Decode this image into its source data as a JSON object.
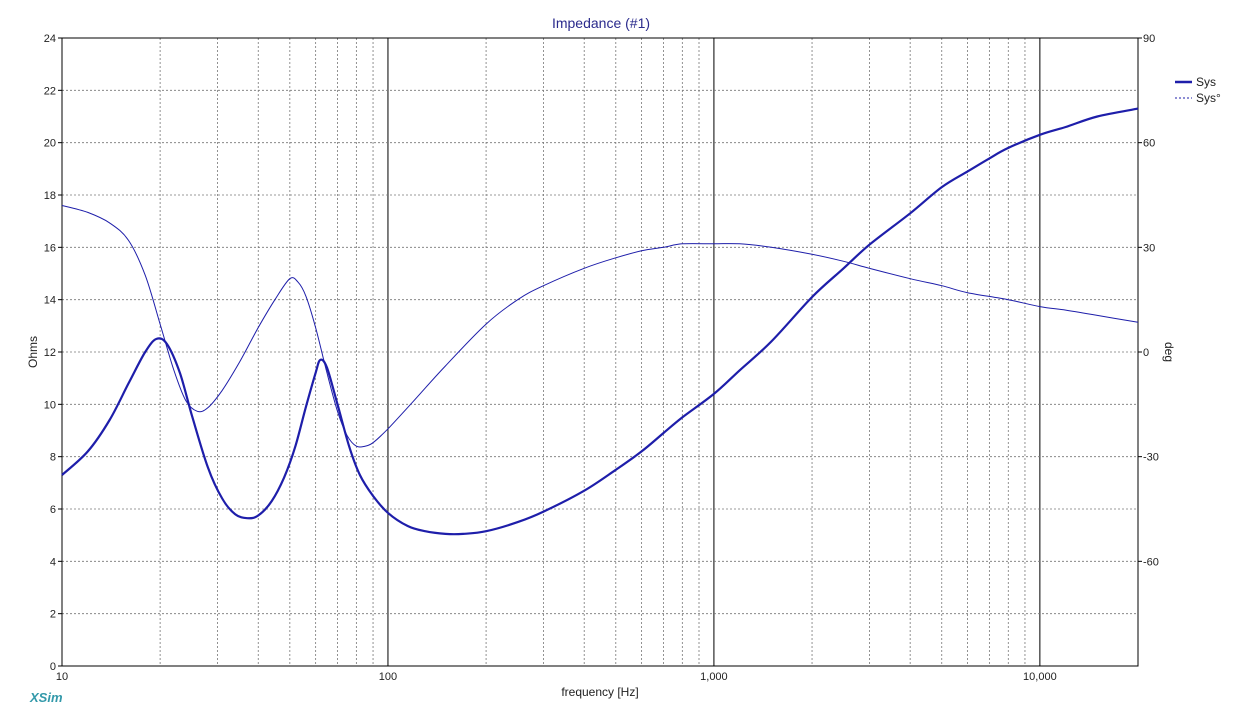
{
  "app": {
    "brand": "XSim"
  },
  "colors": {
    "series": "#1e1eaa",
    "grid": "#777777",
    "frame": "#000000"
  },
  "chart_data": {
    "type": "line",
    "title": "Impedance (#1)",
    "xlabel": "frequency [Hz]",
    "ylabel": "Ohms",
    "y2label": "deg",
    "xscale": "log",
    "xlim": [
      10,
      20000
    ],
    "ylim": [
      0,
      24
    ],
    "y2lim": [
      -90,
      90
    ],
    "x_ticks": [
      {
        "value": 10,
        "label": "10"
      },
      {
        "value": 100,
        "label": "100"
      },
      {
        "value": 1000,
        "label": "1,000"
      },
      {
        "value": 10000,
        "label": "10,000"
      }
    ],
    "y_ticks": [
      0,
      2,
      4,
      6,
      8,
      10,
      12,
      14,
      16,
      18,
      20,
      22,
      24
    ],
    "y2_ticks": [
      -60,
      -30,
      0,
      30,
      60,
      90
    ],
    "grid": true,
    "legend": {
      "placement": "right"
    },
    "series": [
      {
        "name": "Sys",
        "axis": "left",
        "style": "solid",
        "points": [
          [
            10,
            7.3
          ],
          [
            12,
            8.2
          ],
          [
            14,
            9.4
          ],
          [
            16,
            10.8
          ],
          [
            18,
            12.0
          ],
          [
            19.5,
            12.5
          ],
          [
            21,
            12.3
          ],
          [
            23,
            11.2
          ],
          [
            25,
            9.6
          ],
          [
            28,
            7.6
          ],
          [
            31,
            6.4
          ],
          [
            34,
            5.8
          ],
          [
            37,
            5.65
          ],
          [
            40,
            5.75
          ],
          [
            44,
            6.3
          ],
          [
            48,
            7.2
          ],
          [
            52,
            8.4
          ],
          [
            56,
            9.9
          ],
          [
            60,
            11.2
          ],
          [
            62,
            11.7
          ],
          [
            65,
            11.4
          ],
          [
            70,
            10.0
          ],
          [
            76,
            8.4
          ],
          [
            82,
            7.3
          ],
          [
            90,
            6.5
          ],
          [
            100,
            5.85
          ],
          [
            115,
            5.35
          ],
          [
            130,
            5.15
          ],
          [
            150,
            5.05
          ],
          [
            170,
            5.05
          ],
          [
            200,
            5.15
          ],
          [
            250,
            5.5
          ],
          [
            300,
            5.9
          ],
          [
            400,
            6.7
          ],
          [
            500,
            7.5
          ],
          [
            600,
            8.2
          ],
          [
            700,
            8.9
          ],
          [
            800,
            9.5
          ],
          [
            1000,
            10.4
          ],
          [
            1200,
            11.3
          ],
          [
            1500,
            12.4
          ],
          [
            2000,
            14.1
          ],
          [
            2500,
            15.2
          ],
          [
            3000,
            16.1
          ],
          [
            4000,
            17.3
          ],
          [
            5000,
            18.3
          ],
          [
            6000,
            18.9
          ],
          [
            7000,
            19.4
          ],
          [
            8000,
            19.8
          ],
          [
            10000,
            20.3
          ],
          [
            12000,
            20.6
          ],
          [
            15000,
            21.0
          ],
          [
            20000,
            21.3
          ]
        ]
      },
      {
        "name": "Sys°",
        "axis": "right",
        "style": "dashed",
        "points": [
          [
            10,
            42
          ],
          [
            12,
            40
          ],
          [
            14,
            37
          ],
          [
            16,
            32
          ],
          [
            18,
            22
          ],
          [
            20,
            8
          ],
          [
            22,
            -5
          ],
          [
            24,
            -14
          ],
          [
            26,
            -17
          ],
          [
            28,
            -16
          ],
          [
            31,
            -11
          ],
          [
            35,
            -3
          ],
          [
            40,
            7
          ],
          [
            45,
            15
          ],
          [
            50,
            21
          ],
          [
            53,
            20
          ],
          [
            56,
            16
          ],
          [
            60,
            7
          ],
          [
            65,
            -6
          ],
          [
            70,
            -17
          ],
          [
            75,
            -24
          ],
          [
            80,
            -27
          ],
          [
            85,
            -27
          ],
          [
            90,
            -26
          ],
          [
            100,
            -22
          ],
          [
            120,
            -14
          ],
          [
            150,
            -4
          ],
          [
            200,
            8
          ],
          [
            250,
            15
          ],
          [
            300,
            19
          ],
          [
            400,
            24
          ],
          [
            500,
            27
          ],
          [
            600,
            29
          ],
          [
            700,
            30
          ],
          [
            800,
            31
          ],
          [
            1000,
            31
          ],
          [
            1200,
            31
          ],
          [
            1500,
            30
          ],
          [
            2000,
            28
          ],
          [
            2500,
            26
          ],
          [
            3000,
            24
          ],
          [
            4000,
            21
          ],
          [
            5000,
            19
          ],
          [
            6000,
            17
          ],
          [
            8000,
            15
          ],
          [
            10000,
            13
          ],
          [
            12000,
            12
          ],
          [
            15000,
            10.5
          ],
          [
            20000,
            8.5
          ]
        ]
      }
    ]
  }
}
